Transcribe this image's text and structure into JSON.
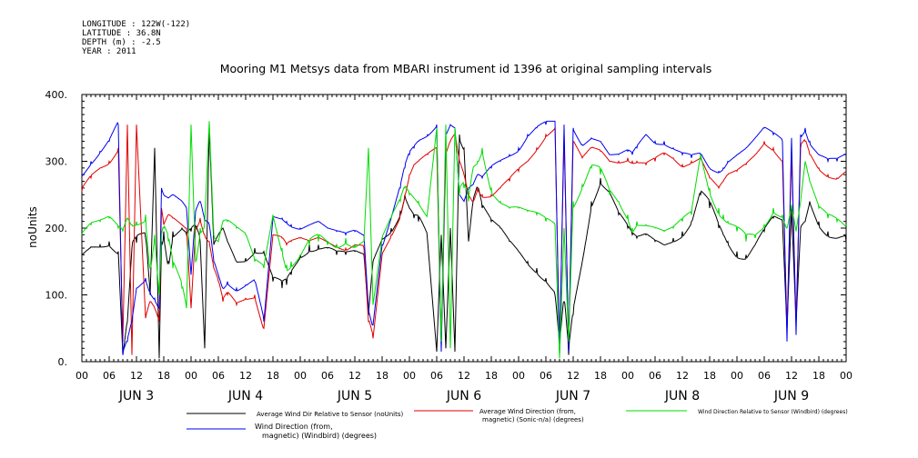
{
  "header": {
    "meta_lines": [
      "LONGITUDE : 122W(-122)",
      "LATITUDE : 36.8N",
      "DEPTH (m) : -2.5",
      "YEAR : 2011"
    ]
  },
  "chart_data": {
    "type": "line",
    "title": "Mooring M1 Metsys data from MBARI instrument id 1396 at original sampling intervals",
    "ylabel": "noUnits",
    "xlabel": "",
    "ylim": [
      0,
      400
    ],
    "y_ticks": [
      0,
      100,
      200,
      300,
      400
    ],
    "y_tick_labels": [
      "0.",
      "100.",
      "200.",
      "300.",
      "400."
    ],
    "x_hours_range": [
      0,
      168
    ],
    "x_hour_labels": [
      "00",
      "06",
      "12",
      "18",
      "00",
      "06",
      "12",
      "18",
      "00",
      "06",
      "12",
      "18",
      "00",
      "06",
      "12",
      "18",
      "00",
      "06",
      "12",
      "18",
      "00",
      "06",
      "12",
      "18",
      "00",
      "06",
      "12",
      "18",
      "00"
    ],
    "day_labels": [
      "JUN 3",
      "JUN 4",
      "JUN 5",
      "JUN 6",
      "JUN 7",
      "JUN 8",
      "JUN 9"
    ],
    "grid": false,
    "legend_placement": "bottom",
    "series": [
      {
        "name": "Average Wind Dir Relative to Sensor (noUnits)",
        "color": "#000000",
        "x": [
          0,
          2,
          4,
          6,
          8,
          9,
          10,
          11,
          12,
          14,
          15,
          16,
          17,
          17.5,
          18,
          19,
          20,
          22,
          23,
          24,
          25,
          26,
          27,
          28,
          29,
          30,
          31,
          32,
          34,
          36,
          38,
          40,
          42,
          44,
          45,
          46,
          48,
          50,
          52,
          54,
          56,
          58,
          60,
          62,
          63,
          64,
          66,
          68,
          70,
          71,
          72,
          73,
          74,
          76,
          78,
          79,
          80,
          81,
          82,
          83,
          84,
          85,
          86,
          87,
          88,
          90,
          92,
          94,
          96,
          98,
          100,
          102,
          104,
          105,
          106,
          107,
          108,
          110,
          112,
          114,
          116,
          118,
          120,
          121,
          122,
          124,
          126,
          128,
          130,
          132,
          134,
          136,
          138,
          140,
          141,
          142,
          144,
          146,
          148,
          150,
          152,
          154,
          155,
          156,
          157,
          158,
          159,
          160,
          162,
          164,
          166,
          168
        ],
        "y": [
          160,
          172,
          175,
          180,
          165,
          10,
          60,
          170,
          178,
          185,
          100,
          320,
          5,
          180,
          195,
          150,
          195,
          200,
          190,
          195,
          200,
          180,
          20,
          350,
          175,
          190,
          200,
          180,
          150,
          155,
          170,
          165,
          120,
          110,
          115,
          130,
          160,
          175,
          175,
          170,
          160,
          160,
          165,
          160,
          70,
          150,
          185,
          200,
          225,
          250,
          230,
          215,
          210,
          180,
          15,
          190,
          20,
          200,
          15,
          340,
          320,
          180,
          240,
          260,
          230,
          210,
          200,
          180,
          165,
          150,
          140,
          125,
          100,
          20,
          90,
          10,
          70,
          150,
          240,
          275,
          255,
          220,
          200,
          190,
          185,
          190,
          180,
          175,
          185,
          195,
          210,
          250,
          230,
          200,
          190,
          180,
          165,
          160,
          175,
          195,
          215,
          210,
          50,
          230,
          60,
          200,
          210,
          240,
          210,
          195,
          185,
          180
        ]
      },
      {
        "name": "Average Wind Direction (from, magnetic) (Sonic-n/a) (degrees)",
        "color": "#e00000",
        "x": [
          0,
          2,
          4,
          6,
          8,
          9,
          10,
          11,
          12,
          14,
          15,
          16,
          17,
          17.5,
          18,
          19,
          20,
          22,
          23,
          24,
          25,
          26,
          27,
          28,
          29,
          30,
          31,
          32,
          34,
          36,
          38,
          40,
          42,
          44,
          45,
          46,
          48,
          50,
          52,
          54,
          56,
          58,
          60,
          62,
          63,
          64,
          66,
          68,
          70,
          71,
          72,
          73,
          74,
          76,
          78,
          79,
          80,
          81,
          82,
          83,
          84,
          85,
          86,
          87,
          88,
          90,
          92,
          94,
          96,
          98,
          100,
          102,
          104,
          105,
          106,
          107,
          108,
          110,
          112,
          114,
          116,
          118,
          120,
          121,
          122,
          124,
          126,
          128,
          130,
          132,
          134,
          136,
          138,
          140,
          141,
          142,
          144,
          146,
          148,
          150,
          152,
          154,
          155,
          156,
          157,
          158,
          159,
          160,
          162,
          164,
          166,
          168
        ],
        "y": [
          255,
          275,
          290,
          300,
          320,
          30,
          355,
          10,
          355,
          65,
          90,
          80,
          60,
          230,
          205,
          220,
          215,
          205,
          200,
          80,
          200,
          215,
          190,
          180,
          140,
          120,
          90,
          100,
          85,
          95,
          100,
          50,
          190,
          185,
          175,
          180,
          185,
          180,
          185,
          180,
          175,
          170,
          175,
          170,
          60,
          35,
          160,
          190,
          220,
          250,
          280,
          295,
          300,
          310,
          320,
          25,
          310,
          330,
          340,
          300,
          280,
          250,
          240,
          260,
          250,
          250,
          260,
          270,
          285,
          300,
          320,
          340,
          350,
          15,
          340,
          20,
          330,
          305,
          320,
          315,
          300,
          300,
          305,
          300,
          300,
          295,
          300,
          310,
          305,
          295,
          300,
          305,
          275,
          260,
          270,
          280,
          285,
          295,
          310,
          330,
          320,
          300,
          50,
          310,
          60,
          320,
          330,
          310,
          290,
          280,
          275,
          285
        ]
      },
      {
        "name": "Wind Direction Relative to Sensor (Windbird) (degrees)",
        "color": "#00dd00",
        "x": [
          0,
          2,
          4,
          6,
          8,
          9,
          10,
          11,
          12,
          14,
          15,
          16,
          17,
          17.5,
          18,
          19,
          20,
          22,
          23,
          24,
          25,
          26,
          27,
          28,
          29,
          30,
          31,
          32,
          34,
          36,
          38,
          40,
          42,
          44,
          45,
          46,
          48,
          50,
          52,
          54,
          56,
          58,
          60,
          62,
          63,
          64,
          66,
          68,
          70,
          71,
          72,
          73,
          74,
          76,
          78,
          79,
          80,
          81,
          82,
          83,
          84,
          85,
          86,
          87,
          88,
          90,
          92,
          94,
          96,
          98,
          100,
          102,
          104,
          105,
          106,
          107,
          108,
          110,
          112,
          114,
          116,
          118,
          120,
          121,
          122,
          124,
          126,
          128,
          130,
          132,
          134,
          136,
          138,
          140,
          141,
          142,
          144,
          146,
          148,
          150,
          152,
          154,
          155,
          156,
          157,
          158,
          159,
          160,
          162,
          164,
          166,
          168
        ],
        "y": [
          190,
          205,
          210,
          215,
          200,
          195,
          215,
          205,
          210,
          220,
          140,
          190,
          100,
          190,
          200,
          180,
          140,
          110,
          80,
          355,
          150,
          200,
          210,
          360,
          190,
          180,
          210,
          210,
          200,
          190,
          150,
          140,
          220,
          170,
          145,
          150,
          160,
          175,
          180,
          175,
          175,
          185,
          175,
          180,
          320,
          85,
          185,
          215,
          240,
          260,
          250,
          245,
          240,
          225,
          350,
          30,
          355,
          20,
          350,
          250,
          260,
          240,
          290,
          300,
          320,
          260,
          240,
          230,
          230,
          225,
          220,
          210,
          205,
          5,
          200,
          30,
          240,
          265,
          290,
          280,
          250,
          240,
          220,
          200,
          210,
          205,
          200,
          195,
          200,
          210,
          220,
          310,
          260,
          230,
          220,
          210,
          195,
          180,
          185,
          205,
          230,
          220,
          200,
          235,
          195,
          240,
          300,
          270,
          230,
          215,
          210,
          205
        ]
      },
      {
        "name": "Wind Direction (from, magnetic) (Windbird) (degrees)",
        "color": "#0000ee",
        "x": [
          0,
          2,
          4,
          6,
          8,
          9,
          10,
          11,
          12,
          14,
          15,
          16,
          17,
          17.5,
          18,
          19,
          20,
          22,
          23,
          24,
          25,
          26,
          27,
          28,
          29,
          30,
          31,
          32,
          34,
          36,
          38,
          40,
          42,
          44,
          45,
          46,
          48,
          50,
          52,
          54,
          56,
          58,
          60,
          62,
          63,
          64,
          66,
          68,
          70,
          71,
          72,
          73,
          74,
          76,
          78,
          79,
          80,
          81,
          82,
          83,
          84,
          85,
          86,
          87,
          88,
          90,
          92,
          94,
          96,
          98,
          100,
          102,
          104,
          105,
          106,
          107,
          108,
          110,
          112,
          114,
          116,
          118,
          120,
          121,
          122,
          124,
          126,
          128,
          130,
          132,
          134,
          136,
          138,
          140,
          141,
          142,
          144,
          146,
          148,
          150,
          152,
          154,
          155,
          156,
          157,
          158,
          159,
          160,
          162,
          164,
          166,
          168
        ],
        "y": [
          280,
          300,
          315,
          330,
          355,
          10,
          30,
          60,
          110,
          125,
          105,
          95,
          80,
          260,
          250,
          245,
          250,
          240,
          230,
          130,
          225,
          240,
          210,
          205,
          150,
          130,
          110,
          120,
          110,
          115,
          120,
          60,
          215,
          215,
          210,
          205,
          200,
          205,
          210,
          200,
          195,
          190,
          195,
          190,
          80,
          55,
          175,
          215,
          260,
          290,
          310,
          320,
          330,
          340,
          355,
          15,
          340,
          355,
          350,
          250,
          240,
          260,
          265,
          280,
          275,
          290,
          300,
          310,
          320,
          340,
          350,
          355,
          360,
          10,
          355,
          15,
          350,
          325,
          335,
          330,
          310,
          310,
          315,
          310,
          320,
          340,
          330,
          330,
          320,
          310,
          305,
          310,
          290,
          285,
          290,
          300,
          310,
          320,
          335,
          350,
          340,
          330,
          30,
          335,
          40,
          340,
          350,
          330,
          310,
          300,
          300,
          310
        ]
      }
    ]
  }
}
